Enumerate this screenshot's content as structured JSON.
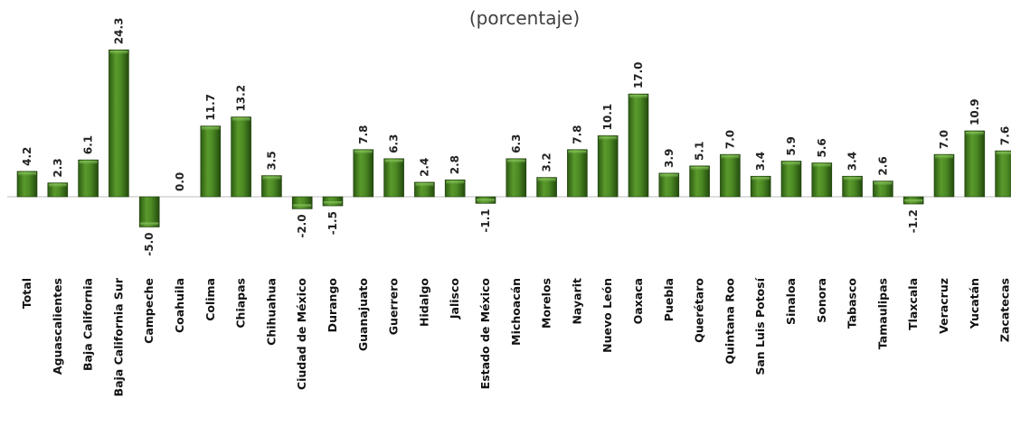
{
  "chart_data": {
    "type": "bar",
    "subtitle": "(porcentaje)",
    "categories": [
      "Total",
      "Aguascalientes",
      "Baja California",
      "Baja California Sur",
      "Campeche",
      "Coahuila",
      "Colima",
      "Chiapas",
      "Chihuahua",
      "Ciudad de México",
      "Durango",
      "Guanajuato",
      "Guerrero",
      "Hidalgo",
      "Jalisco",
      "Estado de México",
      "Michoacán",
      "Morelos",
      "Nayarit",
      "Nuevo León",
      "Oaxaca",
      "Puebla",
      "Querétaro",
      "Quintana Roo",
      "San Luis Potosí",
      "Sinaloa",
      "Sonora",
      "Tabasco",
      "Tamaulipas",
      "Tlaxcala",
      "Veracruz",
      "Yucatán",
      "Zacatecas"
    ],
    "values": [
      4.2,
      2.3,
      6.1,
      24.3,
      -5.0,
      0.0,
      11.7,
      13.2,
      3.5,
      -2.0,
      -1.5,
      7.8,
      6.3,
      2.4,
      2.8,
      -1.1,
      6.3,
      3.2,
      7.8,
      10.1,
      17.0,
      3.9,
      5.1,
      7.0,
      3.4,
      5.9,
      5.6,
      3.4,
      2.6,
      -1.2,
      7.0,
      10.9,
      7.6
    ],
    "value_labels": [
      "4.2",
      "2.3",
      "6.1",
      "24.3",
      "-5.0",
      "0.0",
      "11.7",
      "13.2",
      "3.5",
      "-2.0",
      "-1.5",
      "7.8",
      "6.3",
      "2.4",
      "2.8",
      "-1.1",
      "6.3",
      "3.2",
      "7.8",
      "10.1",
      "17.0",
      "3.9",
      "5.1",
      "7.0",
      "3.4",
      "5.9",
      "5.6",
      "3.4",
      "2.6",
      "-1.2",
      "7.0",
      "10.9",
      "7.6"
    ],
    "bar_color": "#3f7a1e",
    "grid": false,
    "legend": "none"
  }
}
